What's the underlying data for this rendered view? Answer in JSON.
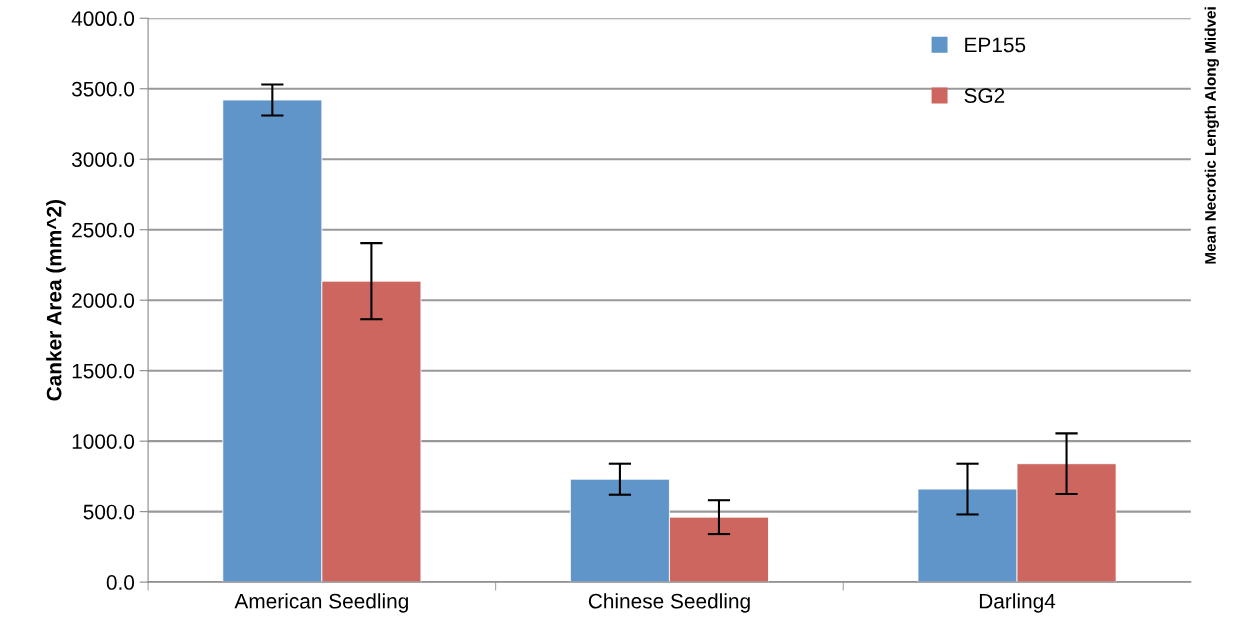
{
  "chart_data": {
    "type": "bar",
    "ylabel": "Canker Area (mm^2)",
    "categories": [
      "American Seedling",
      "Chinese Seedling",
      "Darling4"
    ],
    "series": [
      {
        "name": "EP155",
        "color": "#6095c9",
        "values": [
          3420,
          730,
          660
        ],
        "errors": [
          110,
          110,
          180
        ]
      },
      {
        "name": "SG2",
        "color": "#cc665f",
        "values": [
          2135,
          461,
          840
        ],
        "errors": [
          270,
          120,
          215
        ]
      }
    ],
    "ylim": [
      0,
      4000
    ],
    "yticks": [
      {
        "value": 0,
        "label": "0.0"
      },
      {
        "value": 500,
        "label": "500.0"
      },
      {
        "value": 1000,
        "label": "1000.0"
      },
      {
        "value": 1500,
        "label": "1500.0"
      },
      {
        "value": 2000,
        "label": "2000.0"
      },
      {
        "value": 2500,
        "label": "2500.0"
      },
      {
        "value": 3000,
        "label": "3000.0"
      },
      {
        "value": 3500,
        "label": "3500.0"
      },
      {
        "value": 4000,
        "label": "4000.0"
      }
    ],
    "grid": "y",
    "legend": "top right",
    "annotations": [
      "Mean Necrotic Length Along Midvei"
    ]
  }
}
